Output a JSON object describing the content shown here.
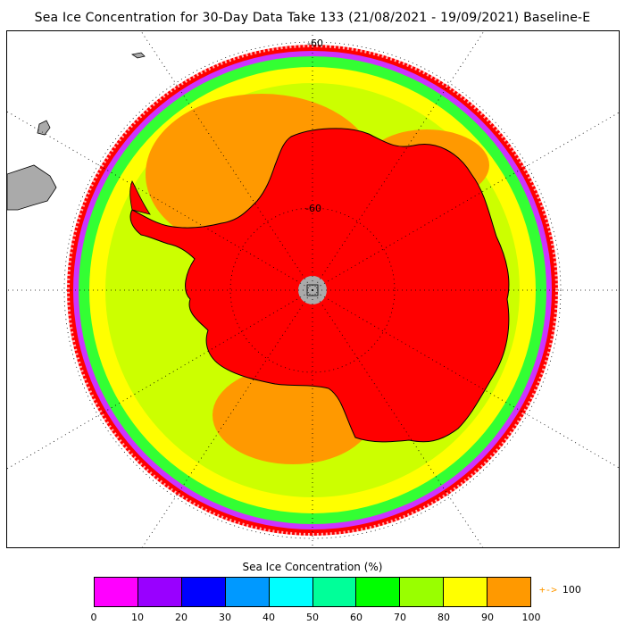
{
  "title": "Sea Ice Concentration for 30-Day Data Take 133 (21/08/2021 - 19/09/2021) Baseline-E",
  "map": {
    "projection": "south-polar-stereographic",
    "lat_labels": [
      "-60",
      "-60"
    ],
    "pole_hole_color": "#aaaaaa",
    "ocean_color": "#ff0000",
    "land_color": "#aaaaaa",
    "gridline_color": "#000000"
  },
  "colorbar": {
    "title": "Sea Ice Concentration (%)",
    "colors": [
      "#ff00ff",
      "#9900ff",
      "#0000ff",
      "#0099ff",
      "#00ffff",
      "#00ff99",
      "#00ff00",
      "#99ff00",
      "#ffff00",
      "#ff9900"
    ],
    "ticks": [
      "0",
      "10",
      "20",
      "30",
      "40",
      "50",
      "60",
      "70",
      "80",
      "90",
      "100"
    ],
    "overflow_label": "100",
    "overflow_arrow": "+->"
  }
}
